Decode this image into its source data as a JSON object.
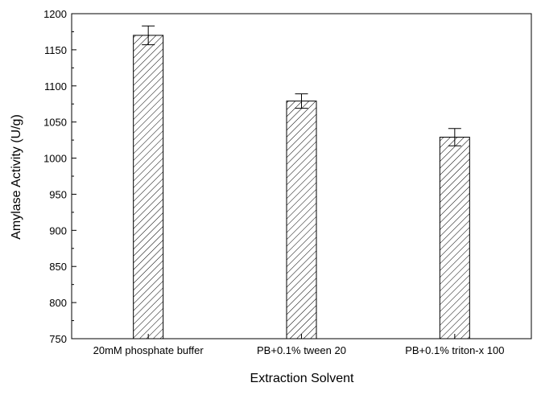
{
  "chart_data": {
    "type": "bar",
    "xlabel": "Extraction Solvent",
    "ylabel": "Amylase Activity (U/g)",
    "categories": [
      "20mM phosphate buffer",
      "PB+0.1% tween 20",
      "PB+0.1% triton-x 100"
    ],
    "values": [
      1170,
      1079,
      1029
    ],
    "errors": [
      13,
      10,
      12
    ],
    "ylim": [
      750,
      1200
    ],
    "yticks": [
      750,
      800,
      850,
      900,
      950,
      1000,
      1050,
      1100,
      1150,
      1200
    ],
    "bar_pattern": "diagonal-hatch",
    "grid": false,
    "colors": {
      "bar_fill": "#ffffff",
      "bar_stroke": "#000000",
      "hatch": "#000000",
      "axis": "#000000"
    }
  }
}
